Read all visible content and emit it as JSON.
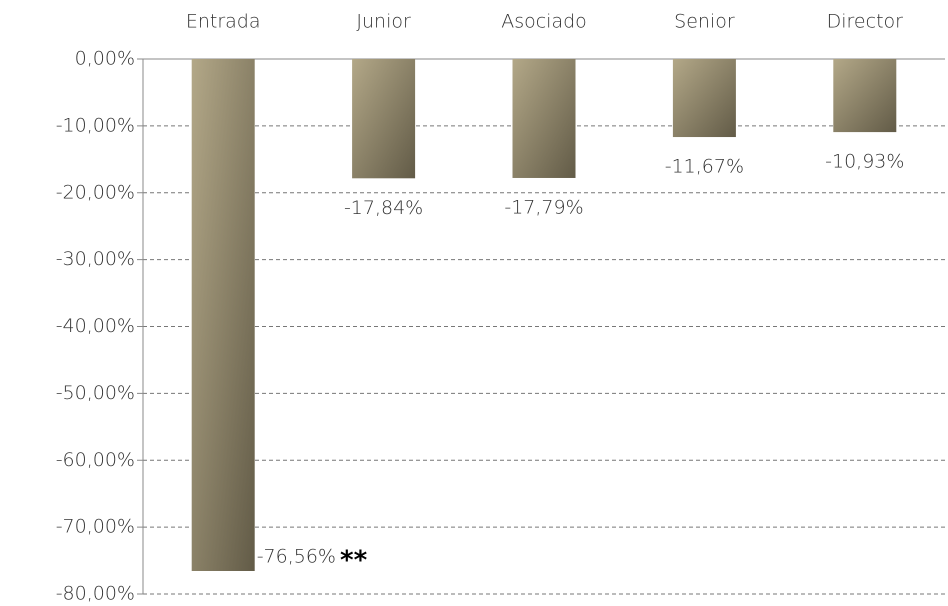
{
  "chart_data": {
    "type": "bar",
    "categories": [
      "Entrada",
      "Junior",
      "Asociado",
      "Senior",
      "Director"
    ],
    "values": [
      -76.56,
      -17.84,
      -17.79,
      -11.67,
      -10.93
    ],
    "value_labels": [
      "-76,56%",
      "-17,84%",
      "-17,79%",
      "-11,67%",
      "-10,93%"
    ],
    "annotation": "**",
    "color": "#b3a888",
    "ylim": [
      -80,
      0
    ],
    "yticks": [
      {
        "value": 0,
        "label": "0,00%"
      },
      {
        "value": -10,
        "label": "-10,00%"
      },
      {
        "value": -20,
        "label": "-20,00%"
      },
      {
        "value": -30,
        "label": "-30,00%"
      },
      {
        "value": -40,
        "label": "-40,00%"
      },
      {
        "value": -50,
        "label": "-50,00%"
      },
      {
        "value": -60,
        "label": "-60,00%"
      },
      {
        "value": -70,
        "label": "-70,00%"
      },
      {
        "value": -80,
        "label": "-80,00%"
      }
    ],
    "grid": true
  }
}
